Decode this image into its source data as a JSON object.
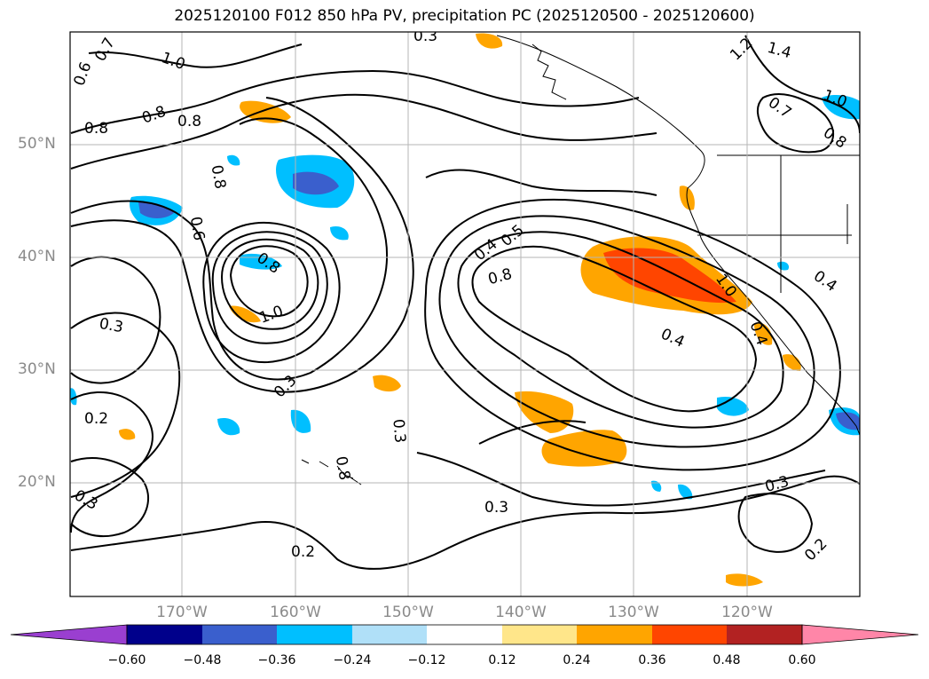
{
  "title": "2025120100 F012 850 hPa PV, precipitation PC (2025120500 - 2025120600)",
  "latitude_labels": [
    "50°N",
    "40°N",
    "30°N",
    "20°N"
  ],
  "longitude_labels": [
    "170°W",
    "160°W",
    "150°W",
    "140°W",
    "130°W",
    "120°W"
  ],
  "contour_labels": [
    "0.6",
    "0.7",
    "1.0",
    "0.8",
    "0.8",
    "0.8",
    "0.8",
    "0.6",
    "0.8",
    "1.0",
    "0.3",
    "0.3",
    "0.2",
    "0.3",
    "0.2",
    "0.3",
    "0.4",
    "0.5",
    "0.8",
    "0.4",
    "0.3",
    "1.0",
    "0.4",
    "0.3",
    "0.2",
    "1.2",
    "1.4",
    "1.0",
    "0.7",
    "0.8",
    "0.4",
    "0.3",
    "0.8"
  ],
  "colorbar": {
    "ticks": [
      "−0.60",
      "−0.48",
      "−0.36",
      "−0.24",
      "−0.12",
      "0.12",
      "0.24",
      "0.36",
      "0.48",
      "0.60"
    ],
    "colors": [
      "#9a3fd0",
      "#00008b",
      "#3a5fcd",
      "#00bfff",
      "#b0e0f8",
      "#ffffff",
      "#ffe68a",
      "#ffa500",
      "#ff4500",
      "#b22222",
      "#ff86a8"
    ]
  }
}
